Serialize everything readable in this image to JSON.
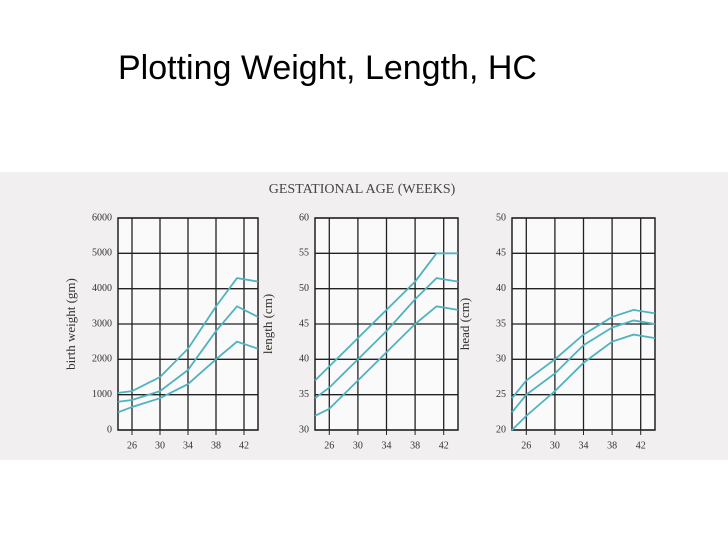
{
  "slide_title": "Plotting Weight, Length, HC",
  "header": "GESTATIONAL AGE (WEEKS)",
  "chart_data": [
    {
      "type": "line",
      "y_label": "birth weight (gm)",
      "color": "#4fb3bf",
      "grid": true,
      "x": [
        24,
        26,
        30,
        34,
        38,
        41,
        44
      ],
      "xlim": [
        24,
        44
      ],
      "xticks": [
        26,
        30,
        34,
        38,
        42
      ],
      "ylim": [
        0,
        6000
      ],
      "yticks": [
        0,
        1000,
        2000,
        3000,
        4000,
        5000,
        6000
      ],
      "series": [
        {
          "values": [
            1050,
            1100,
            1500,
            2300,
            3500,
            4300,
            4200
          ]
        },
        {
          "values": [
            800,
            850,
            1100,
            1700,
            2800,
            3500,
            3200
          ]
        },
        {
          "values": [
            500,
            650,
            900,
            1300,
            2000,
            2500,
            2300
          ]
        }
      ]
    },
    {
      "type": "line",
      "y_label": "length (cm)",
      "color": "#4fb3bf",
      "grid": true,
      "x": [
        24,
        26,
        30,
        34,
        38,
        41,
        44
      ],
      "xlim": [
        24,
        44
      ],
      "xticks": [
        26,
        30,
        34,
        38,
        42
      ],
      "ylim": [
        30,
        60
      ],
      "yticks": [
        30,
        35,
        40,
        45,
        50,
        55,
        60
      ],
      "series": [
        {
          "values": [
            37,
            39,
            43,
            47,
            51,
            55,
            55
          ]
        },
        {
          "values": [
            34.5,
            36,
            40,
            44,
            48.5,
            51.5,
            51
          ]
        },
        {
          "values": [
            32,
            33,
            37,
            41,
            45,
            47.5,
            47
          ]
        }
      ]
    },
    {
      "type": "line",
      "y_label": "head (cm)",
      "color": "#4fb3bf",
      "grid": true,
      "x": [
        24,
        26,
        30,
        34,
        38,
        41,
        44
      ],
      "xlim": [
        24,
        44
      ],
      "xticks": [
        26,
        30,
        34,
        38,
        42
      ],
      "ylim": [
        20,
        50
      ],
      "yticks": [
        20,
        25,
        30,
        35,
        40,
        45,
        50
      ],
      "series": [
        {
          "values": [
            24.5,
            27,
            30,
            33.5,
            36,
            37,
            36.5
          ]
        },
        {
          "values": [
            22.5,
            25,
            28,
            32,
            34.5,
            35.5,
            35
          ]
        },
        {
          "values": [
            20,
            22,
            25.5,
            29.5,
            32.5,
            33.5,
            33
          ]
        }
      ]
    }
  ]
}
